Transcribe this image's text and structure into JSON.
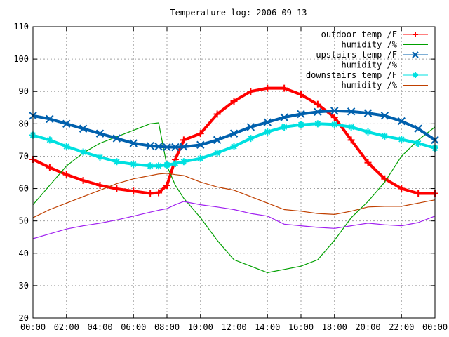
{
  "chart_data": {
    "type": "line",
    "title": "Temperature log: 2006-09-13",
    "xlabel": "",
    "ylabel": "",
    "xlim": [
      0,
      24
    ],
    "ylim": [
      20,
      110
    ],
    "x_ticks": [
      "00:00",
      "02:00",
      "04:00",
      "06:00",
      "08:00",
      "10:00",
      "12:00",
      "14:00",
      "16:00",
      "18:00",
      "20:00",
      "22:00",
      "00:00"
    ],
    "y_ticks": [
      20,
      30,
      40,
      50,
      60,
      70,
      80,
      90,
      100,
      110
    ],
    "grid": true,
    "legend_position": "top-right",
    "x": [
      0,
      1,
      2,
      3,
      4,
      5,
      6,
      7,
      7.5,
      8,
      8.5,
      9,
      10,
      11,
      12,
      13,
      14,
      15,
      16,
      17,
      18,
      19,
      20,
      21,
      22,
      23,
      24
    ],
    "series": [
      {
        "name": "outdoor temp /F",
        "color": "#ff0000",
        "marker": "plus",
        "values": [
          69,
          66.5,
          64.3,
          62.5,
          61,
          59.9,
          59.2,
          58.5,
          58.7,
          61,
          69,
          75,
          77,
          83,
          87,
          90,
          91,
          91,
          89,
          86,
          82,
          75,
          68,
          63,
          60,
          58.5,
          58.5
        ]
      },
      {
        "name": "humidity /%",
        "color": "#00a000",
        "marker": "",
        "values": [
          55,
          61,
          67,
          71,
          74,
          76,
          78,
          80,
          80.3,
          67,
          61,
          57,
          51,
          44,
          38,
          36,
          34,
          35,
          36,
          38,
          44,
          51,
          56,
          62,
          70,
          75,
          79
        ]
      },
      {
        "name": "upstairs temp /F",
        "color": "#0060ad",
        "marker": "cross",
        "values": [
          82.5,
          81.5,
          80,
          78.5,
          77,
          75.5,
          74,
          73.2,
          73,
          72.8,
          72.8,
          72.9,
          73.5,
          75,
          77,
          79,
          80.5,
          82,
          83,
          83.7,
          84,
          83.8,
          83.3,
          82.5,
          80.8,
          78.5,
          75
        ]
      },
      {
        "name": "humidity /%",
        "color": "#a020f0",
        "marker": "",
        "values": [
          44.5,
          46,
          47.5,
          48.5,
          49.3,
          50.3,
          51.5,
          52.7,
          53.3,
          53.8,
          55,
          56,
          55,
          54.3,
          53.5,
          52.3,
          51.5,
          49,
          48.5,
          48,
          47.7,
          48.5,
          49.3,
          48.8,
          48.5,
          49.5,
          51.5
        ]
      },
      {
        "name": "downstairs temp /F",
        "color": "#00e0e0",
        "marker": "asterisk",
        "values": [
          76.5,
          75,
          73,
          71.3,
          69.7,
          68.3,
          67.5,
          67,
          67,
          67.3,
          67.7,
          68.3,
          69.3,
          71,
          73,
          75.5,
          77.5,
          79,
          79.7,
          80,
          79.8,
          79,
          77.5,
          76.2,
          75.2,
          74,
          72.5
        ]
      },
      {
        "name": "humidity /%",
        "color": "#c04000",
        "marker": "",
        "values": [
          51,
          53.5,
          55.5,
          57.5,
          59.5,
          61.5,
          63,
          64,
          64.5,
          64.7,
          64.3,
          64,
          62,
          60.5,
          59.5,
          57.5,
          55.5,
          53.5,
          53,
          52.3,
          52,
          53,
          54.3,
          54.5,
          54.5,
          55.5,
          56.5
        ]
      }
    ]
  }
}
